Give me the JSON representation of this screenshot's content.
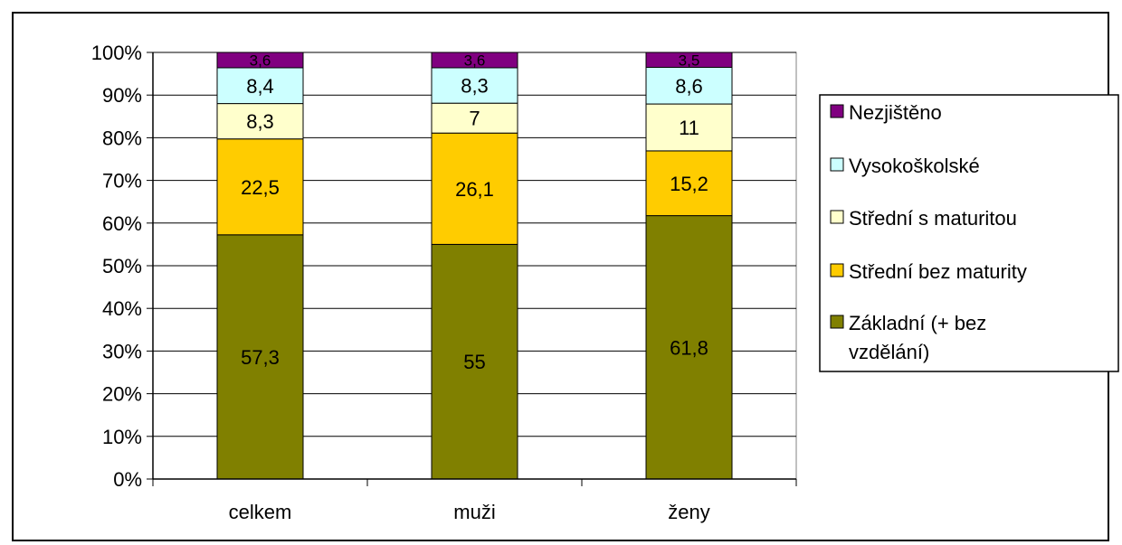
{
  "chart_data": {
    "type": "bar",
    "stacked": true,
    "percent_stacked": true,
    "categories": [
      "celkem",
      "muži",
      "ženy"
    ],
    "series": [
      {
        "name": "Základní (+ bez vzdělání)",
        "legend_lines": [
          "Základní (+ bez",
          "vzdělání)"
        ],
        "labels": [
          "57,3",
          "55",
          "61,8"
        ],
        "values": [
          57.3,
          55,
          61.8
        ],
        "color": "#808000"
      },
      {
        "name": "Střední bez maturity",
        "legend_lines": [
          "Střední bez maturity"
        ],
        "labels": [
          "22,5",
          "26,1",
          "15,2"
        ],
        "values": [
          22.5,
          26.1,
          15.2
        ],
        "color": "#FFCC00"
      },
      {
        "name": "Střední s maturitou",
        "legend_lines": [
          "Střední s maturitou"
        ],
        "labels": [
          "8,3",
          "7",
          "11"
        ],
        "values": [
          8.3,
          7,
          11
        ],
        "color": "#FFFFCC"
      },
      {
        "name": "Vysokoškolské",
        "legend_lines": [
          "Vysokoškolské"
        ],
        "labels": [
          "8,4",
          "8,3",
          "8,6"
        ],
        "values": [
          8.4,
          8.3,
          8.6
        ],
        "color": "#CCFFFF"
      },
      {
        "name": "Nezjištěno",
        "legend_lines": [
          "Nezjištěno"
        ],
        "labels": [
          "3,6",
          "3,6",
          "3,5"
        ],
        "values": [
          3.6,
          3.6,
          3.5
        ],
        "color": "#800080"
      }
    ],
    "y_ticks": [
      "0%",
      "10%",
      "20%",
      "30%",
      "40%",
      "50%",
      "60%",
      "70%",
      "80%",
      "90%",
      "100%"
    ],
    "ylim": [
      0,
      100
    ],
    "grid": true,
    "legend_position": "right",
    "legend_order": [
      4,
      3,
      2,
      1,
      0
    ]
  }
}
